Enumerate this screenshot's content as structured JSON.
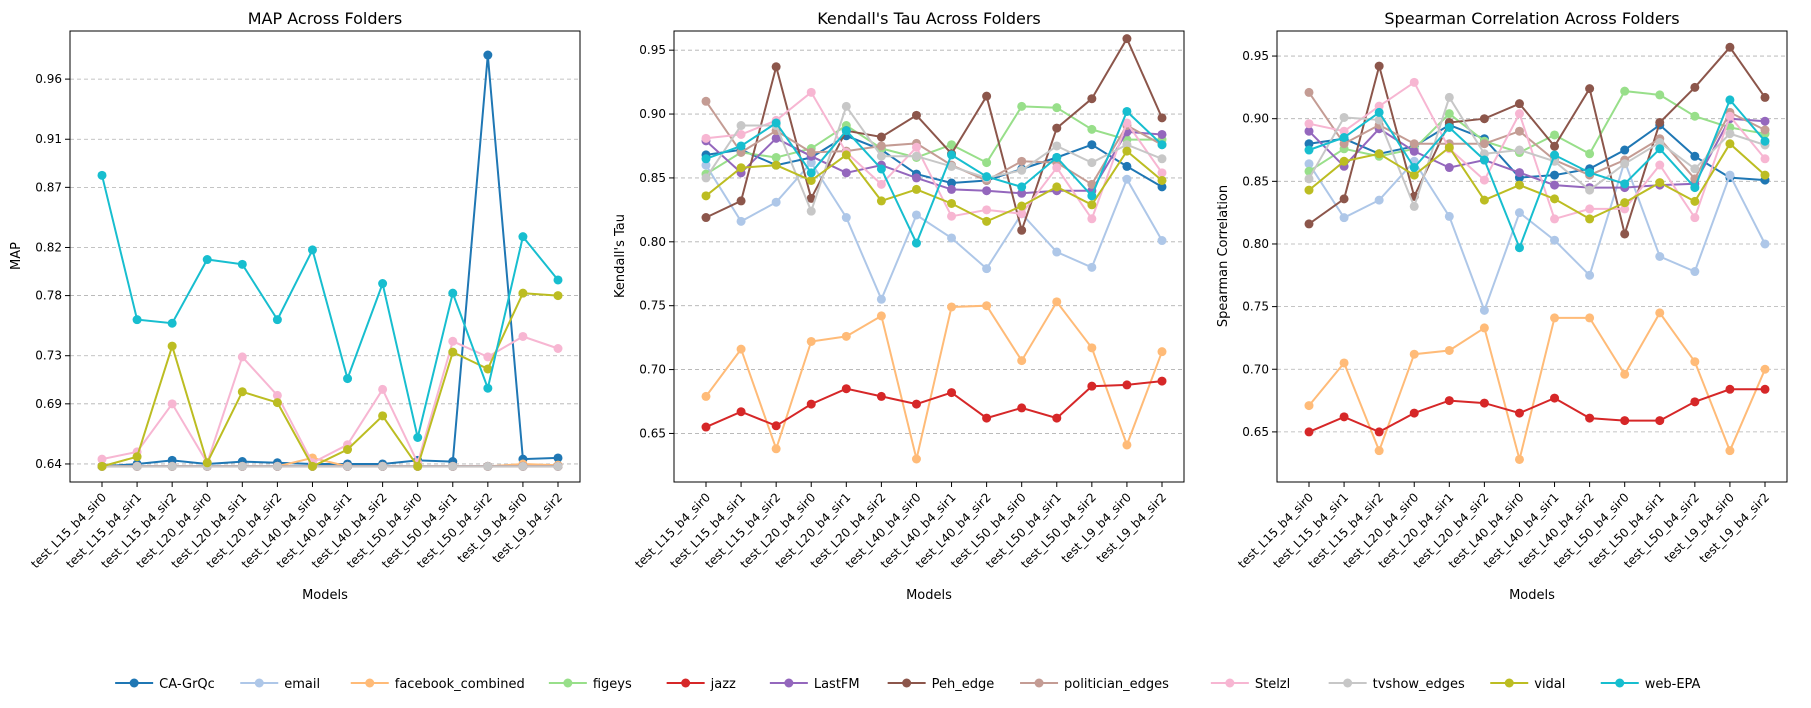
{
  "legend_position": "bottom-center",
  "series_colors": {
    "CA-GrQc": "#1f77b4",
    "email": "#aec7e8",
    "facebook_combined": "#ffbb78",
    "figeys": "#98df8a",
    "jazz": "#d62728",
    "LastFM": "#9467bd",
    "Peh_edge": "#8c564b",
    "politician_edges": "#c49c94",
    "Stelzl": "#f7b6d2",
    "tvshow_edges": "#c7c7c7",
    "vidal": "#bcbd22",
    "web-EPA": "#17becf"
  },
  "legend": [
    "CA-GrQc",
    "email",
    "facebook_combined",
    "figeys",
    "jazz",
    "LastFM",
    "Peh_edge",
    "politician_edges",
    "Stelzl",
    "tvshow_edges",
    "vidal",
    "web-EPA"
  ],
  "chart_data": [
    {
      "type": "line",
      "title": "MAP Across Folders",
      "xlabel": "Models",
      "ylabel": "MAP",
      "ylim": [
        0.625,
        1.0
      ],
      "yticks": [
        "0.64",
        "0.69",
        "0.73",
        "0.78",
        "0.82",
        "0.87",
        "0.91",
        "0.96"
      ],
      "grid": "y-dashed",
      "categories": [
        "test_L15_b4_sir0",
        "test_L15_b4_sir1",
        "test_L15_b4_sir2",
        "test_L20_b4_sir0",
        "test_L20_b4_sir1",
        "test_L20_b4_sir2",
        "test_L40_b4_sir0",
        "test_L40_b4_sir1",
        "test_L40_b4_sir2",
        "test_L50_b4_sir0",
        "test_L50_b4_sir1",
        "test_L50_b4_sir2",
        "test_L9_b4_sir0",
        "test_L9_b4_sir2"
      ],
      "series": [
        {
          "name": "CA-GrQc",
          "values": [
            0.638,
            0.64,
            0.643,
            0.64,
            0.642,
            0.641,
            0.64,
            0.64,
            0.64,
            0.643,
            0.642,
            0.98,
            0.644,
            0.645
          ]
        },
        {
          "name": "email",
          "values": [
            0.638,
            0.638,
            0.638,
            0.638,
            0.638,
            0.638,
            0.638,
            0.638,
            0.638,
            0.638,
            0.638,
            0.638,
            0.638,
            0.638
          ]
        },
        {
          "name": "facebook_combined",
          "values": [
            0.638,
            0.638,
            0.638,
            0.638,
            0.638,
            0.638,
            0.645,
            0.638,
            0.638,
            0.638,
            0.638,
            0.638,
            0.64,
            0.639
          ]
        },
        {
          "name": "figeys",
          "values": [
            0.638,
            0.638,
            0.638,
            0.638,
            0.638,
            0.638,
            0.638,
            0.638,
            0.638,
            0.638,
            0.638,
            0.638,
            0.638,
            0.638
          ]
        },
        {
          "name": "jazz",
          "values": [
            0.638,
            0.638,
            0.638,
            0.638,
            0.638,
            0.638,
            0.638,
            0.638,
            0.638,
            0.638,
            0.638,
            0.638,
            0.638,
            0.638
          ]
        },
        {
          "name": "LastFM",
          "values": [
            0.638,
            0.638,
            0.638,
            0.638,
            0.638,
            0.638,
            0.638,
            0.638,
            0.638,
            0.638,
            0.638,
            0.638,
            0.638,
            0.638
          ]
        },
        {
          "name": "Peh_edge",
          "values": [
            0.638,
            0.638,
            0.638,
            0.638,
            0.638,
            0.638,
            0.638,
            0.638,
            0.638,
            0.638,
            0.638,
            0.638,
            0.638,
            0.638
          ]
        },
        {
          "name": "politician_edges",
          "values": [
            0.638,
            0.638,
            0.638,
            0.638,
            0.638,
            0.638,
            0.638,
            0.638,
            0.638,
            0.638,
            0.638,
            0.638,
            0.638,
            0.638
          ]
        },
        {
          "name": "Stelzl",
          "values": [
            0.644,
            0.65,
            0.69,
            0.641,
            0.729,
            0.697,
            0.641,
            0.656,
            0.702,
            0.641,
            0.742,
            0.729,
            0.746,
            0.736
          ]
        },
        {
          "name": "tvshow_edges",
          "values": [
            0.638,
            0.638,
            0.638,
            0.638,
            0.638,
            0.638,
            0.638,
            0.638,
            0.638,
            0.638,
            0.638,
            0.638,
            0.638,
            0.638
          ]
        },
        {
          "name": "vidal",
          "values": [
            0.638,
            0.646,
            0.738,
            0.641,
            0.7,
            0.691,
            0.638,
            0.652,
            0.68,
            0.638,
            0.733,
            0.719,
            0.782,
            0.78
          ]
        },
        {
          "name": "web-EPA",
          "values": [
            0.88,
            0.76,
            0.757,
            0.81,
            0.806,
            0.76,
            0.818,
            0.711,
            0.79,
            0.662,
            0.782,
            0.703,
            0.829,
            0.793
          ]
        }
      ]
    },
    {
      "type": "line",
      "title": "Kendall's Tau Across Folders",
      "xlabel": "Models",
      "ylabel": "Kendall's Tau",
      "ylim": [
        0.612,
        0.965
      ],
      "yticks": [
        "0.65",
        "0.70",
        "0.75",
        "0.80",
        "0.85",
        "0.90",
        "0.95"
      ],
      "grid": "y-dashed",
      "categories": [
        "test_L15_b4_sir0",
        "test_L15_b4_sir1",
        "test_L15_b4_sir2",
        "test_L20_b4_sir0",
        "test_L20_b4_sir1",
        "test_L20_b4_sir2",
        "test_L40_b4_sir0",
        "test_L40_b4_sir1",
        "test_L40_b4_sir2",
        "test_L50_b4_sir0",
        "test_L50_b4_sir1",
        "test_L50_b4_sir2",
        "test_L9_b4_sir0",
        "test_L9_b4_sir2"
      ],
      "series": [
        {
          "name": "CA-GrQc",
          "values": [
            0.868,
            0.872,
            0.86,
            0.866,
            0.883,
            0.872,
            0.853,
            0.846,
            0.848,
            0.857,
            0.866,
            0.876,
            0.859,
            0.843
          ]
        },
        {
          "name": "email",
          "values": [
            0.86,
            0.816,
            0.831,
            0.862,
            0.819,
            0.755,
            0.821,
            0.803,
            0.779,
            0.822,
            0.792,
            0.78,
            0.849,
            0.801
          ]
        },
        {
          "name": "facebook_combined",
          "values": [
            0.679,
            0.716,
            0.638,
            0.722,
            0.726,
            0.742,
            0.63,
            0.749,
            0.75,
            0.707,
            0.753,
            0.717,
            0.641,
            0.714
          ]
        },
        {
          "name": "figeys",
          "values": [
            0.853,
            0.87,
            0.866,
            0.873,
            0.891,
            0.873,
            0.866,
            0.876,
            0.862,
            0.906,
            0.905,
            0.888,
            0.88,
            0.88
          ]
        },
        {
          "name": "jazz",
          "values": [
            0.655,
            0.667,
            0.656,
            0.673,
            0.685,
            0.679,
            0.673,
            0.682,
            0.662,
            0.67,
            0.662,
            0.687,
            0.688,
            0.691
          ]
        },
        {
          "name": "LastFM",
          "values": [
            0.879,
            0.854,
            0.881,
            0.867,
            0.854,
            0.86,
            0.85,
            0.841,
            0.84,
            0.838,
            0.84,
            0.84,
            0.886,
            0.884
          ]
        },
        {
          "name": "Peh_edge",
          "values": [
            0.819,
            0.832,
            0.937,
            0.834,
            0.887,
            0.882,
            0.899,
            0.869,
            0.914,
            0.809,
            0.889,
            0.912,
            0.959,
            0.897
          ]
        },
        {
          "name": "politician_edges",
          "values": [
            0.91,
            0.87,
            0.887,
            0.87,
            0.871,
            0.875,
            0.877,
            0.86,
            0.848,
            0.863,
            0.862,
            0.845,
            0.891,
            0.876
          ]
        },
        {
          "name": "Stelzl",
          "values": [
            0.881,
            0.884,
            0.895,
            0.917,
            0.87,
            0.845,
            0.874,
            0.82,
            0.825,
            0.822,
            0.858,
            0.818,
            0.893,
            0.854
          ]
        },
        {
          "name": "tvshow_edges",
          "values": [
            0.85,
            0.891,
            0.891,
            0.824,
            0.906,
            0.867,
            0.867,
            0.859,
            0.85,
            0.856,
            0.875,
            0.862,
            0.876,
            0.865
          ]
        },
        {
          "name": "vidal",
          "values": [
            0.836,
            0.858,
            0.86,
            0.848,
            0.868,
            0.832,
            0.841,
            0.83,
            0.816,
            0.828,
            0.843,
            0.829,
            0.871,
            0.848
          ]
        },
        {
          "name": "web-EPA",
          "values": [
            0.865,
            0.875,
            0.893,
            0.854,
            0.887,
            0.857,
            0.799,
            0.868,
            0.851,
            0.843,
            0.866,
            0.836,
            0.902,
            0.876
          ]
        }
      ]
    },
    {
      "type": "line",
      "title": "Spearman Correlation Across Folders",
      "xlabel": "Models",
      "ylabel": "Spearman Correlation",
      "ylim": [
        0.61,
        0.97
      ],
      "yticks": [
        "0.65",
        "0.70",
        "0.75",
        "0.80",
        "0.85",
        "0.90",
        "0.95"
      ],
      "grid": "y-dashed",
      "categories": [
        "test_L15_b4_sir0",
        "test_L15_b4_sir1",
        "test_L15_b4_sir2",
        "test_L20_b4_sir0",
        "test_L20_b4_sir1",
        "test_L20_b4_sir2",
        "test_L40_b4_sir0",
        "test_L40_b4_sir1",
        "test_L40_b4_sir2",
        "test_L50_b4_sir0",
        "test_L50_b4_sir1",
        "test_L50_b4_sir2",
        "test_L9_b4_sir0",
        "test_L9_b4_sir2"
      ],
      "series": [
        {
          "name": "CA-GrQc",
          "values": [
            0.88,
            0.884,
            0.872,
            0.878,
            0.895,
            0.884,
            0.853,
            0.855,
            0.86,
            0.875,
            0.895,
            0.87,
            0.853,
            0.851
          ]
        },
        {
          "name": "email",
          "values": [
            0.864,
            0.821,
            0.835,
            0.866,
            0.822,
            0.747,
            0.825,
            0.803,
            0.775,
            0.866,
            0.79,
            0.778,
            0.855,
            0.8
          ]
        },
        {
          "name": "facebook_combined",
          "values": [
            0.671,
            0.705,
            0.635,
            0.712,
            0.715,
            0.733,
            0.628,
            0.741,
            0.741,
            0.696,
            0.745,
            0.706,
            0.635,
            0.7
          ]
        },
        {
          "name": "figeys",
          "values": [
            0.858,
            0.876,
            0.87,
            0.876,
            0.904,
            0.882,
            0.873,
            0.887,
            0.872,
            0.922,
            0.919,
            0.902,
            0.893,
            0.888
          ]
        },
        {
          "name": "jazz",
          "values": [
            0.65,
            0.662,
            0.65,
            0.665,
            0.675,
            0.673,
            0.665,
            0.677,
            0.661,
            0.659,
            0.659,
            0.674,
            0.684,
            0.684
          ]
        },
        {
          "name": "LastFM",
          "values": [
            0.89,
            0.862,
            0.892,
            0.874,
            0.861,
            0.867,
            0.857,
            0.847,
            0.845,
            0.845,
            0.847,
            0.848,
            0.9,
            0.898
          ]
        },
        {
          "name": "Peh_edge",
          "values": [
            0.816,
            0.836,
            0.942,
            0.838,
            0.897,
            0.9,
            0.912,
            0.878,
            0.924,
            0.808,
            0.897,
            0.925,
            0.957,
            0.917
          ]
        },
        {
          "name": "politician_edges",
          "values": [
            0.921,
            0.88,
            0.895,
            0.88,
            0.88,
            0.88,
            0.89,
            0.867,
            0.855,
            0.867,
            0.884,
            0.852,
            0.905,
            0.891
          ]
        },
        {
          "name": "Stelzl",
          "values": [
            0.896,
            0.89,
            0.91,
            0.929,
            0.876,
            0.851,
            0.904,
            0.82,
            0.828,
            0.828,
            0.863,
            0.821,
            0.902,
            0.868
          ]
        },
        {
          "name": "tvshow_edges",
          "values": [
            0.852,
            0.901,
            0.899,
            0.83,
            0.917,
            0.872,
            0.875,
            0.866,
            0.843,
            0.864,
            0.881,
            0.86,
            0.888,
            0.879
          ]
        },
        {
          "name": "vidal",
          "values": [
            0.843,
            0.866,
            0.872,
            0.855,
            0.877,
            0.835,
            0.847,
            0.836,
            0.82,
            0.833,
            0.849,
            0.834,
            0.88,
            0.855
          ]
        },
        {
          "name": "web-EPA",
          "values": [
            0.875,
            0.885,
            0.905,
            0.861,
            0.893,
            0.867,
            0.797,
            0.871,
            0.857,
            0.848,
            0.876,
            0.845,
            0.915,
            0.882
          ]
        }
      ]
    }
  ]
}
